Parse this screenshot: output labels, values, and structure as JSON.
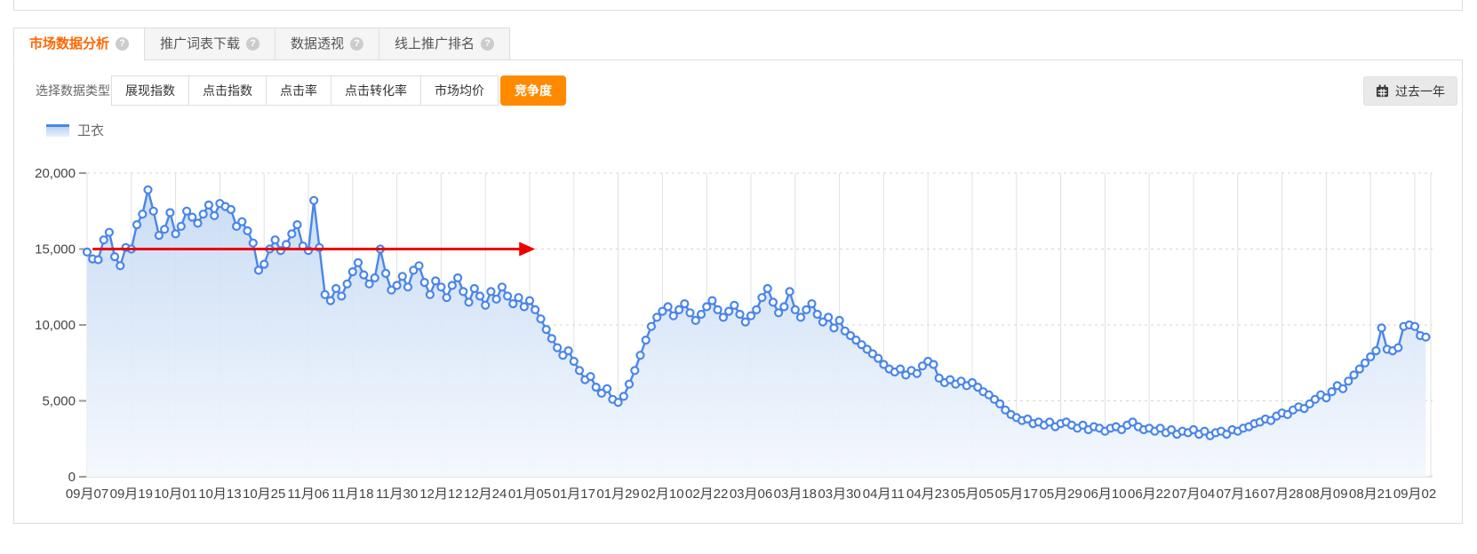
{
  "tabs": [
    {
      "label": "市场数据分析",
      "active": true
    },
    {
      "label": "推广词表下载",
      "active": false
    },
    {
      "label": "数据透视",
      "active": false
    },
    {
      "label": "线上推广排名",
      "active": false
    }
  ],
  "filter": {
    "label": "选择数据类型：",
    "options": [
      {
        "label": "展现指数",
        "active": false
      },
      {
        "label": "点击指数",
        "active": false
      },
      {
        "label": "点击率",
        "active": false
      },
      {
        "label": "点击转化率",
        "active": false
      },
      {
        "label": "市场均价",
        "active": false
      },
      {
        "label": "竞争度",
        "active": true
      }
    ]
  },
  "date_range_button": {
    "label": "过去一年",
    "icon": "calendar-icon"
  },
  "legend": {
    "label": "卫衣"
  },
  "colors": {
    "accent_orange": "#ff8a00",
    "tab_active_text": "#ff6600",
    "line_blue": "#4a86e8",
    "annotation_red": "#ec0000",
    "grid_gray": "#e0e0e0"
  },
  "chart_data": {
    "type": "line",
    "title": "",
    "xlabel": "",
    "ylabel": "",
    "ylim": [
      0,
      20000
    ],
    "y_ticks": [
      0,
      5000,
      10000,
      15000,
      20000
    ],
    "y_tick_labels": [
      "0",
      "5,000",
      "10,000",
      "15,000",
      "20,000"
    ],
    "grid": "vertical solid lines at each date tick, horizontal dashed lines at y ticks",
    "legend_position": "top-left",
    "x_tick_labels": [
      "09月07",
      "09月19",
      "10月01",
      "10月13",
      "10月25",
      "11月06",
      "11月18",
      "11月30",
      "12月12",
      "12月24",
      "01月05",
      "01月17",
      "01月29",
      "02月10",
      "02月22",
      "03月06",
      "03月18",
      "03月30",
      "04月11",
      "04月23",
      "05月05",
      "05月17",
      "05月29",
      "06月10",
      "06月22",
      "07月04",
      "07月16",
      "07月28",
      "08月09",
      "08月21",
      "09月02"
    ],
    "points_per_tick": 8,
    "series": [
      {
        "name": "卫衣",
        "values": [
          14800,
          14350,
          14300,
          15600,
          16100,
          14500,
          13900,
          15100,
          15000,
          16600,
          17300,
          18900,
          17500,
          15900,
          16300,
          17400,
          16000,
          16500,
          17500,
          17100,
          16700,
          17300,
          17900,
          17200,
          18000,
          17800,
          17600,
          16500,
          16800,
          16200,
          15400,
          13600,
          14000,
          15000,
          15600,
          14900,
          15300,
          16000,
          16600,
          15200,
          14900,
          18200,
          15100,
          12000,
          11600,
          12400,
          11900,
          12700,
          13500,
          14100,
          13300,
          12700,
          13100,
          15000,
          13400,
          12300,
          12600,
          13200,
          12500,
          13600,
          13900,
          12800,
          12000,
          12900,
          12500,
          11800,
          12600,
          13100,
          12200,
          11500,
          12400,
          11900,
          11300,
          12200,
          11700,
          12500,
          11900,
          11400,
          11800,
          11200,
          11600,
          11000,
          10400,
          9700,
          9100,
          8500,
          8000,
          8300,
          7600,
          7000,
          6400,
          6600,
          5900,
          5500,
          5800,
          5100,
          4900,
          5300,
          6100,
          7000,
          8000,
          9000,
          9900,
          10500,
          10900,
          11200,
          10600,
          11000,
          11400,
          10800,
          10300,
          10700,
          11200,
          11600,
          11000,
          10500,
          10900,
          11300,
          10700,
          10200,
          10600,
          11000,
          11800,
          12400,
          11500,
          10800,
          11200,
          12200,
          11000,
          10500,
          11000,
          11400,
          10700,
          10200,
          10500,
          9800,
          10300,
          9600,
          9300,
          9000,
          8700,
          8400,
          8100,
          7800,
          7400,
          7100,
          6900,
          7100,
          6700,
          7000,
          6800,
          7300,
          7600,
          7400,
          6500,
          6200,
          6400,
          6100,
          6300,
          6000,
          6200,
          5900,
          5600,
          5400,
          5100,
          4800,
          4400,
          4100,
          3900,
          3700,
          3800,
          3500,
          3600,
          3400,
          3600,
          3300,
          3500,
          3600,
          3400,
          3200,
          3400,
          3100,
          3300,
          3200,
          3000,
          3200,
          3300,
          3100,
          3400,
          3600,
          3300,
          3100,
          3200,
          3000,
          3200,
          2900,
          3100,
          2800,
          3000,
          2900,
          3100,
          2800,
          3000,
          2700,
          2900,
          3000,
          2800,
          3100,
          3000,
          3200,
          3300,
          3500,
          3600,
          3800,
          3700,
          4000,
          4200,
          4100,
          4400,
          4600,
          4500,
          4800,
          5100,
          5400,
          5200,
          5600,
          6000,
          5800,
          6300,
          6700,
          7100,
          7500,
          7900,
          8300,
          9800,
          8400,
          8300,
          8500,
          9900,
          10000,
          9900,
          9300,
          9200
        ]
      }
    ],
    "annotation": {
      "type": "horizontal-arrow",
      "value": 15000,
      "start_point_index": 1,
      "end_point_index": 81,
      "color": "#ec0000"
    }
  }
}
